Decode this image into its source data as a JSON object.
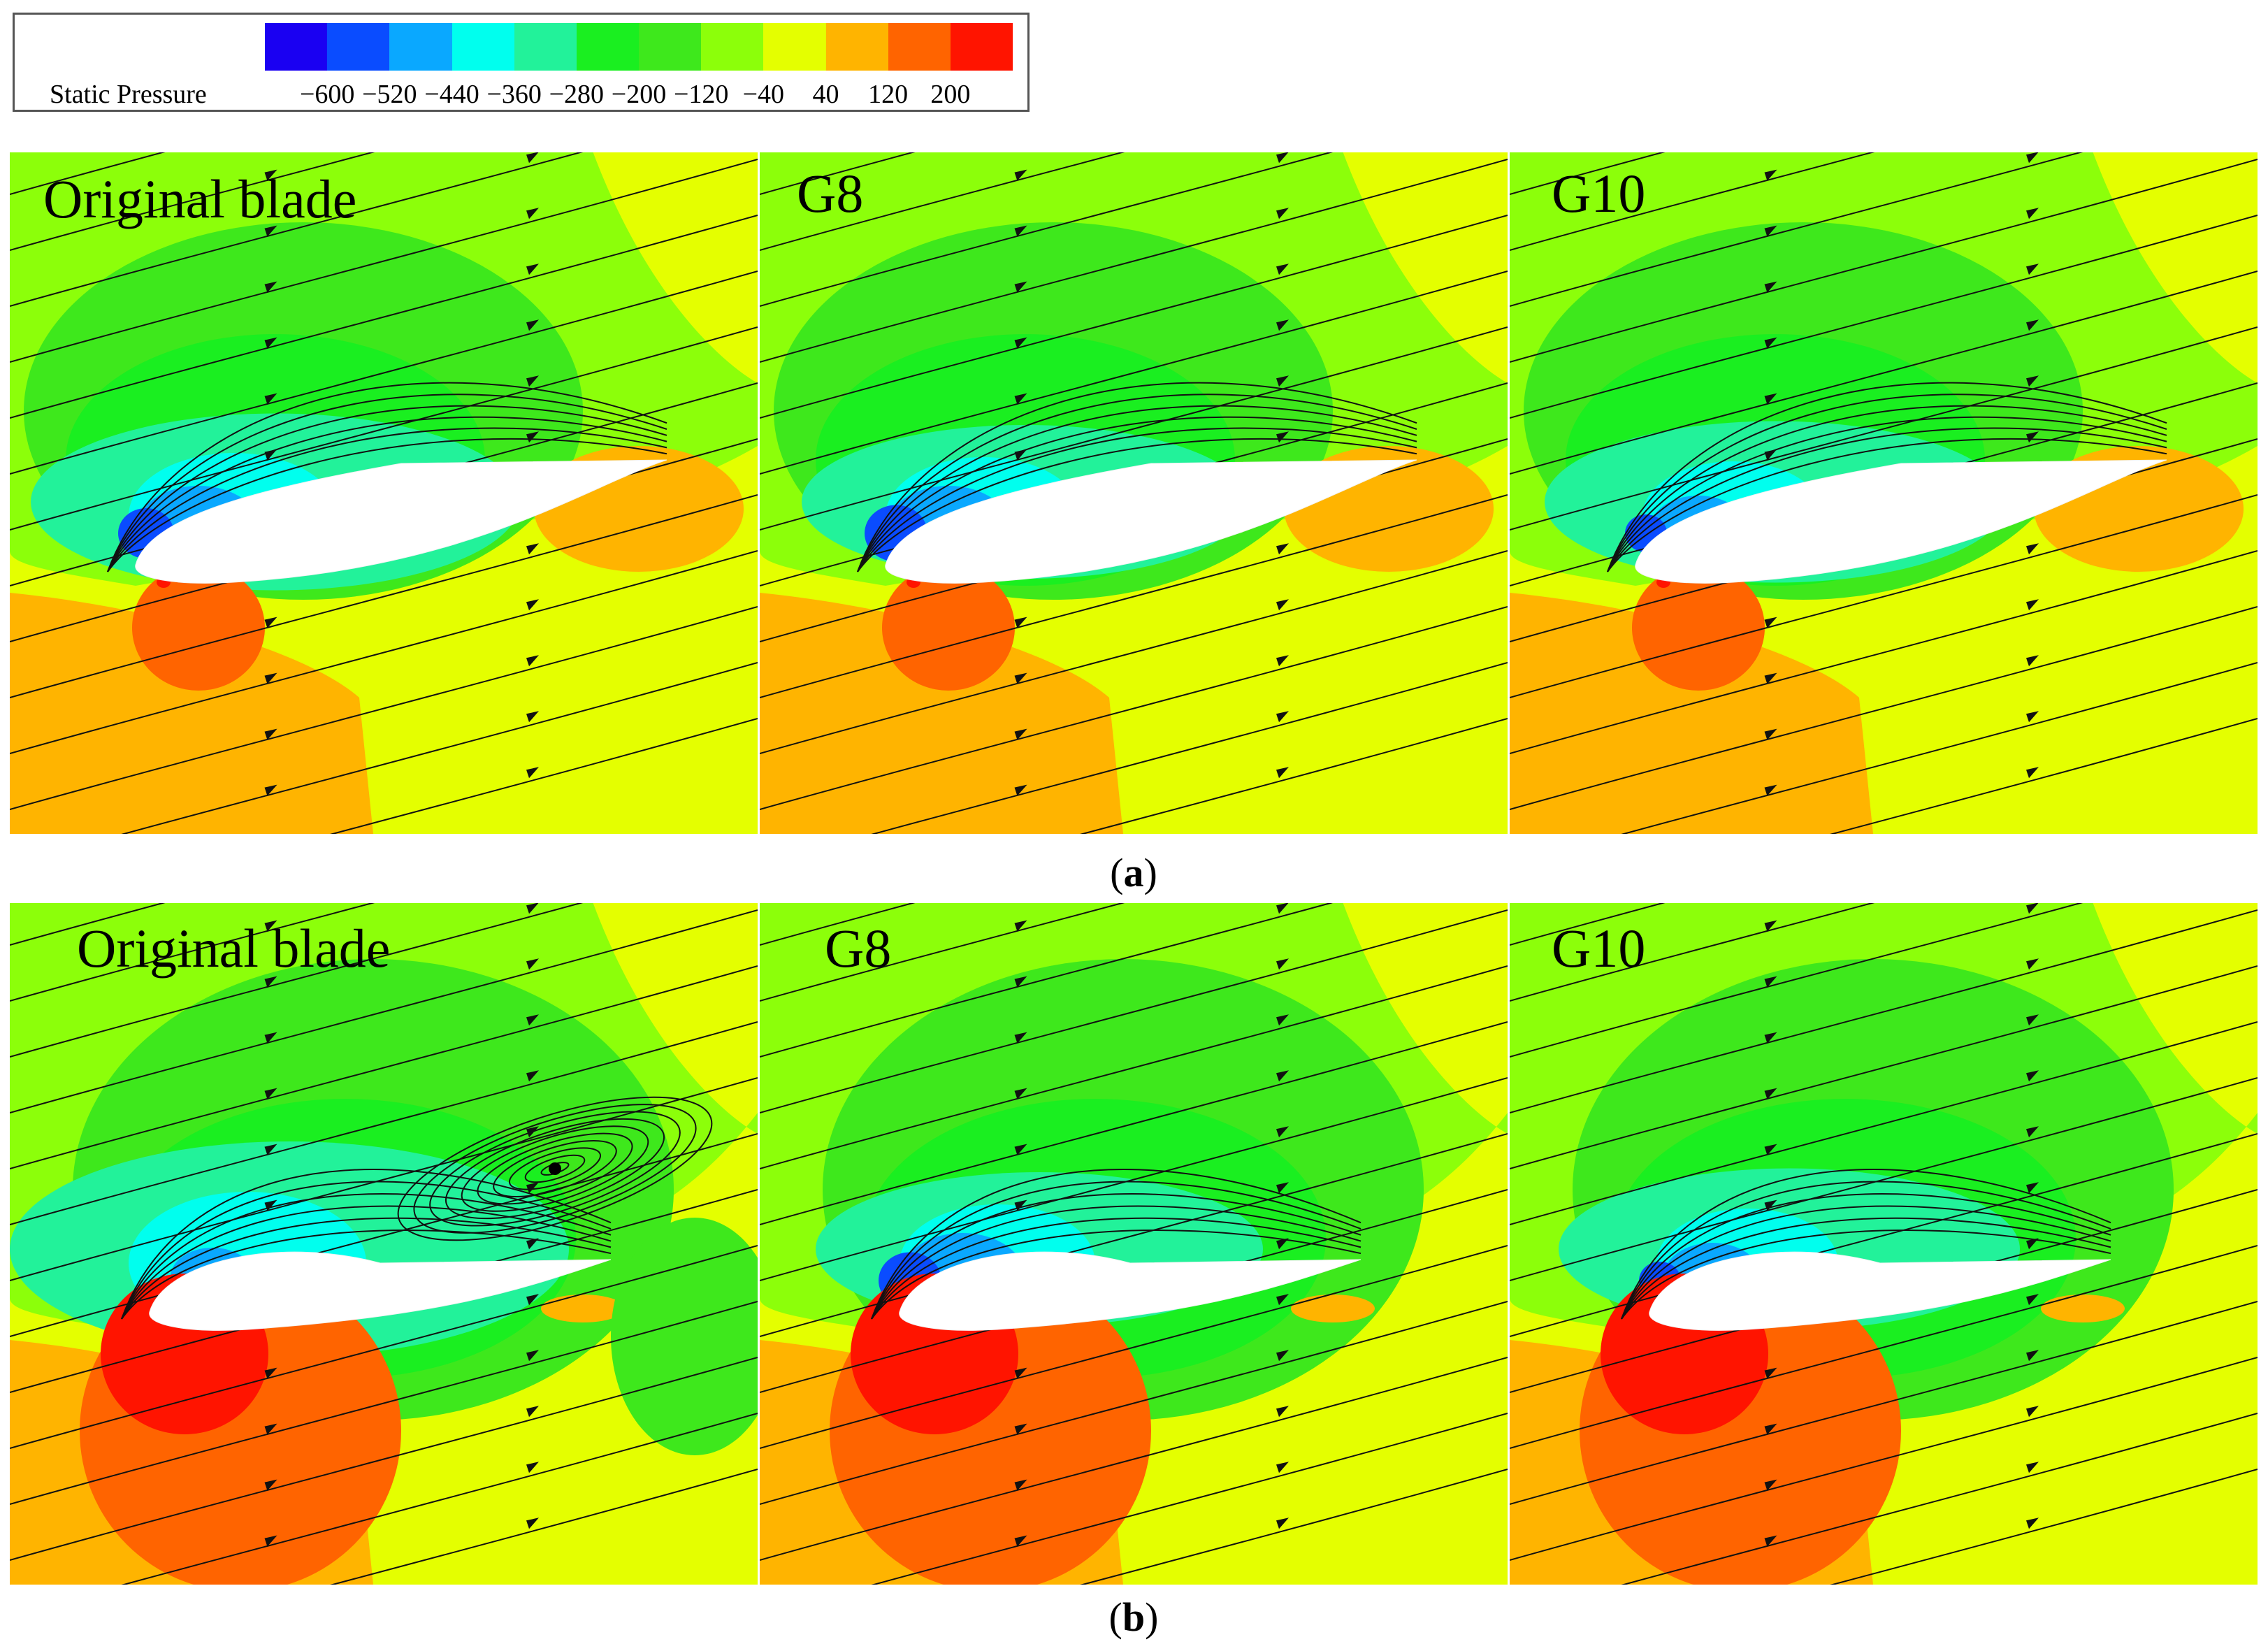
{
  "legend": {
    "title": "Static Pressure",
    "ticks": [
      "−600",
      "−520",
      "−440",
      "−360",
      "−280",
      "−200",
      "−120",
      "−40",
      "40",
      "120",
      "200"
    ],
    "colors": [
      "#1a00f2",
      "#0a4cff",
      "#0aa8ff",
      "#00ffee",
      "#22f29a",
      "#1aef20",
      "#3ee81c",
      "#8cff0a",
      "#e4ff00",
      "#ffb400",
      "#ff6400",
      "#ff1400"
    ]
  },
  "rows": [
    {
      "caption_open": "(",
      "caption_letter": "a",
      "caption_close": ")",
      "panels": [
        {
          "label": "Original blade"
        },
        {
          "label": "G8"
        },
        {
          "label": "G10"
        }
      ]
    },
    {
      "caption_open": "(",
      "caption_letter": "b",
      "caption_close": ")",
      "panels": [
        {
          "label": "Original blade"
        },
        {
          "label": "G8"
        },
        {
          "label": "G10"
        }
      ]
    }
  ]
}
